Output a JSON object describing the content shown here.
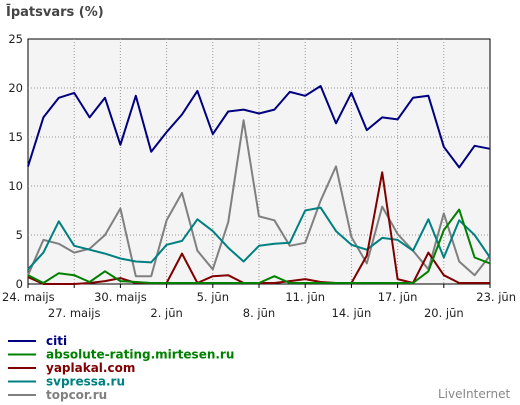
{
  "chart_data": {
    "type": "line",
    "title": "Īpatsvars (%)",
    "ylim": [
      0,
      25
    ],
    "yticks": [
      0,
      5,
      10,
      15,
      20,
      25
    ],
    "grid": true,
    "legend_placement": "bottom-left",
    "x_days": [
      "24.",
      "25.",
      "26.",
      "27.",
      "28.",
      "29.",
      "30.",
      "31.",
      "1.",
      "2.",
      "3.",
      "4.",
      "5.",
      "6.",
      "7.",
      "8.",
      "9.",
      "10.",
      "11.",
      "12.",
      "13.",
      "14.",
      "15.",
      "16.",
      "17.",
      "18.",
      "19.",
      "20.",
      "21.",
      "22.",
      "23."
    ],
    "x_tick_labels": [
      {
        "label": "24. maijs",
        "i": 0,
        "row": 1
      },
      {
        "label": "27. maijs",
        "i": 3,
        "row": 2
      },
      {
        "label": "30. maijs",
        "i": 6,
        "row": 1
      },
      {
        "label": "2. jūn",
        "i": 9,
        "row": 2
      },
      {
        "label": "5. jūn",
        "i": 12,
        "row": 1
      },
      {
        "label": "8. jūn",
        "i": 15,
        "row": 2
      },
      {
        "label": "11. jūn",
        "i": 18,
        "row": 1
      },
      {
        "label": "14. jūn",
        "i": 21,
        "row": 2
      },
      {
        "label": "17. jūn",
        "i": 24,
        "row": 1
      },
      {
        "label": "20. jūn",
        "i": 27,
        "row": 2
      },
      {
        "label": "23. jūn",
        "i": 30,
        "row": 1
      }
    ],
    "series": [
      {
        "name": "citi",
        "color": "#000080",
        "values": [
          12,
          17,
          19,
          19.5,
          17,
          19,
          14.2,
          19.2,
          13.5,
          15.5,
          17.3,
          19.7,
          15.3,
          17.6,
          17.8,
          17.4,
          17.8,
          19.6,
          19.2,
          20.2,
          16.4,
          19.5,
          15.7,
          17,
          16.8,
          19,
          19.2,
          14,
          11.9,
          14.1,
          13.8
        ]
      },
      {
        "name": "absolute-rating.mirtesen.ru",
        "color": "#008000",
        "values": [
          0.9,
          0.1,
          1.1,
          0.9,
          0.2,
          1.3,
          0.3,
          0.2,
          0.1,
          0.1,
          0.1,
          0.1,
          0.1,
          0.1,
          0.1,
          0.1,
          0.8,
          0.1,
          0.1,
          0.1,
          0.1,
          0.1,
          0.1,
          0.1,
          0.1,
          0.1,
          1.3,
          5.5,
          7.6,
          2.7,
          2.1
        ]
      },
      {
        "name": "yaplakal.com",
        "color": "#800000",
        "values": [
          0.7,
          0,
          0,
          0,
          0.1,
          0.3,
          0.6,
          0.1,
          0.1,
          0.1,
          3.1,
          0.1,
          0.8,
          0.9,
          0.1,
          0.1,
          0.1,
          0.3,
          0.5,
          0.2,
          0.1,
          0.1,
          2.9,
          11.4,
          0.5,
          0.1,
          3.2,
          0.9,
          0.1,
          0.1,
          0.1
        ]
      },
      {
        "name": "svpressa.ru",
        "color": "#008080",
        "values": [
          1.5,
          3.2,
          6.4,
          3.9,
          3.5,
          3.1,
          2.6,
          2.3,
          2.2,
          4,
          4.4,
          6.6,
          5.4,
          3.7,
          2.3,
          3.9,
          4.1,
          4.2,
          7.5,
          7.8,
          5.4,
          4,
          3.5,
          4.7,
          4.5,
          3.4,
          6.6,
          2.7,
          6.5,
          5,
          2.7
        ]
      },
      {
        "name": "topcor.ru",
        "color": "#808080",
        "values": [
          0.9,
          4.5,
          4.1,
          3.2,
          3.6,
          5,
          7.7,
          0.8,
          0.8,
          6.5,
          9.3,
          3.4,
          1.5,
          6.3,
          16.7,
          6.9,
          6.5,
          3.9,
          4.2,
          8.5,
          12,
          4.8,
          2.1,
          7.9,
          5.1,
          3.4,
          1.5,
          7.2,
          2.3,
          0.9,
          2.9
        ]
      }
    ]
  },
  "branding": {
    "text": "LiveInternet"
  }
}
